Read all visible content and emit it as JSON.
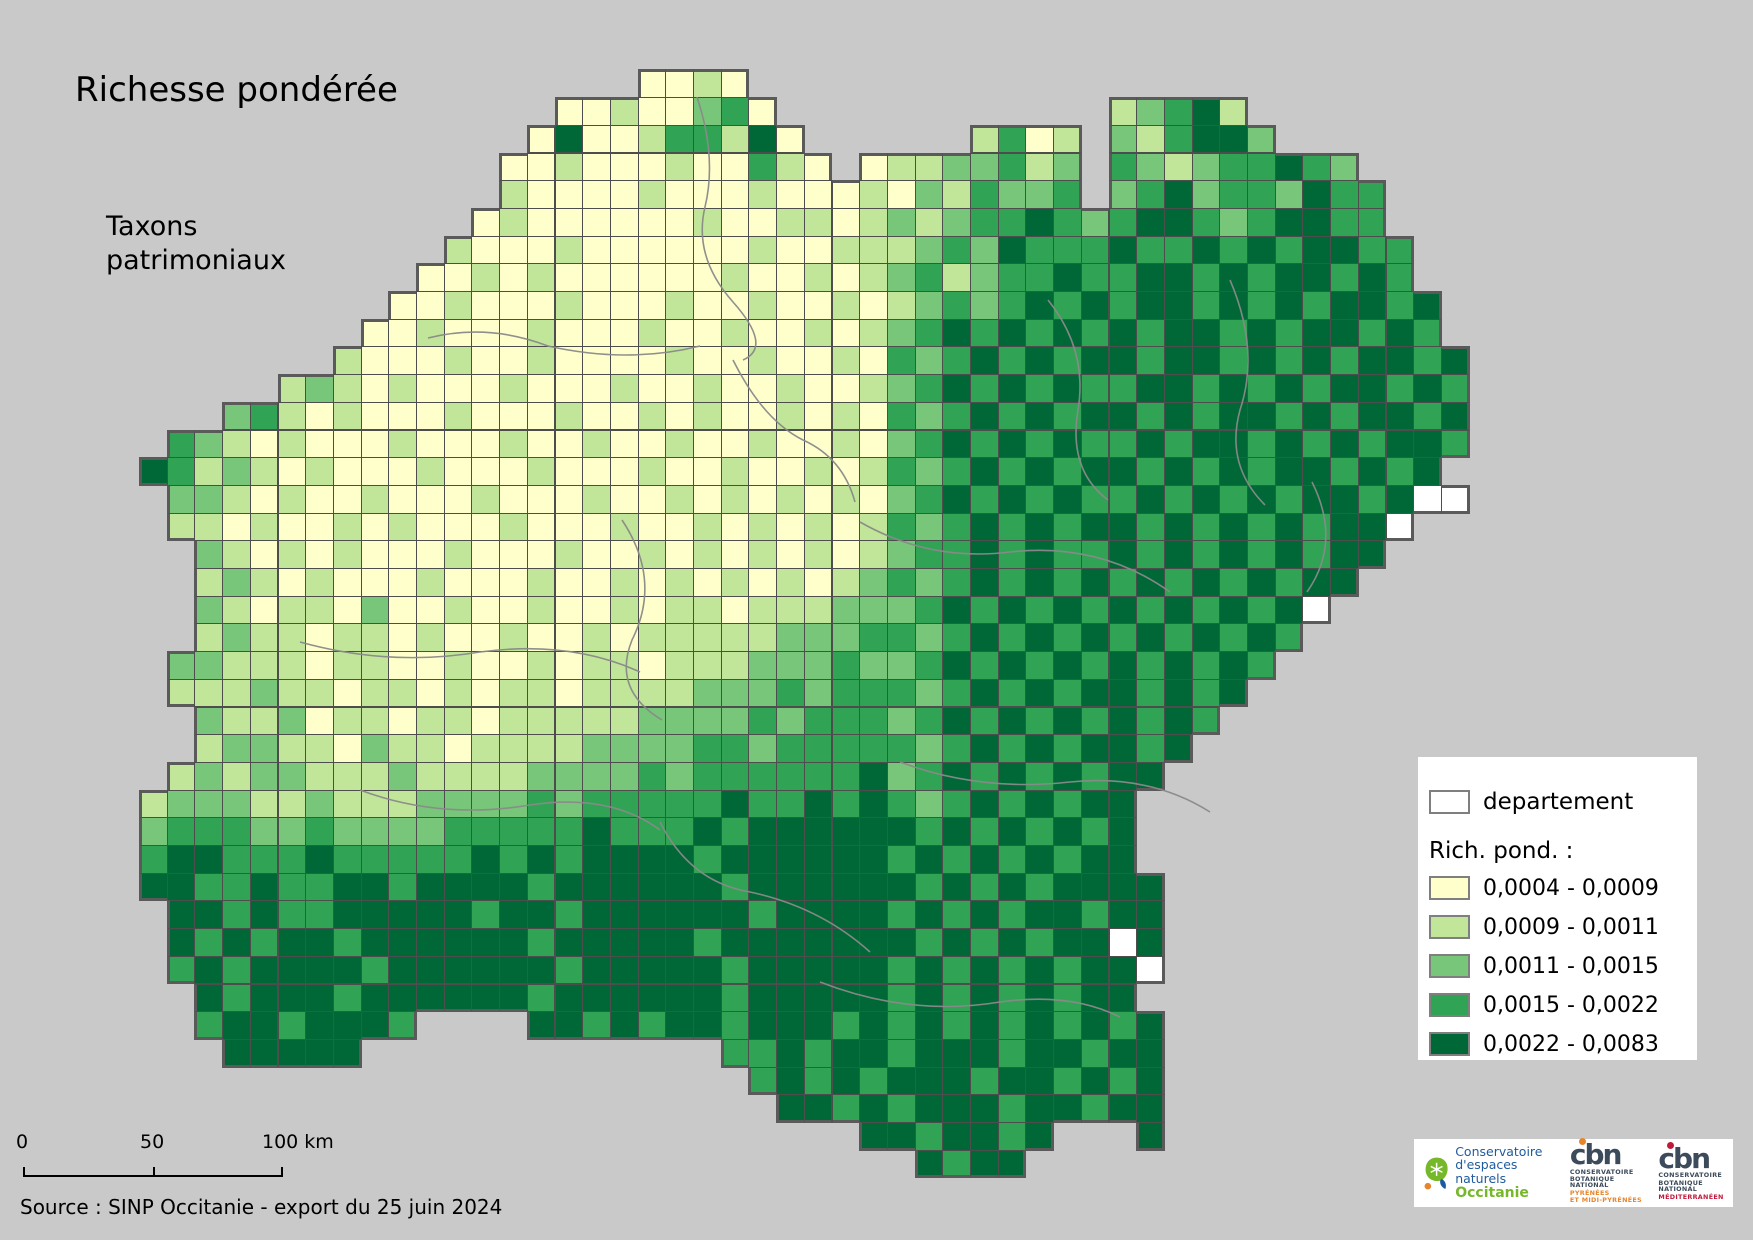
{
  "title": "Richesse pondérée",
  "subtitle": "Taxons\npatrimoniaux",
  "source": "Source : SINP Occitanie - export du 25 juin 2024",
  "scalebar": {
    "labels": [
      "0",
      "50",
      "100 km"
    ]
  },
  "legend": {
    "departement_label": "departement",
    "title": "Rich. pond. :",
    "classes": [
      {
        "label": "0,0004 - 0,0009",
        "color": "#FFFFCC"
      },
      {
        "label": "0,0009 - 0,0011",
        "color": "#C2E699"
      },
      {
        "label": "0,0011 - 0,0015",
        "color": "#78C679"
      },
      {
        "label": "0,0015 - 0,0022",
        "color": "#31A354"
      },
      {
        "label": "0,0022 - 0,0083",
        "color": "#006837"
      }
    ]
  },
  "map": {
    "region": "Occitanie",
    "palette": {
      "0": "#FFFFFF",
      "1": "#FFFFCC",
      "2": "#C2E699",
      "3": "#78C679",
      "4": "#31A354",
      "5": "#006837"
    },
    "rows": [
      "..................1121..........................",
      "...............11211341............23452........",
      "..............1511244251......2412.324553.......",
      ".............112111211421.12233423.432344543....",
      ".............211112111211121324334.3453443544...",
      "............121111112112212323445434554345544...",
      "...........21112111111211222343544454454545544..",
      "..........112121111112112123423445445545455454..",
      ".........11211121112112112123434545455454545545.",
      "........112111211121121121234545454545545455454.",
      ".......21112112111121121121434545455455454545545",
      ".....2321211121112112112112345454544554545455454",
      "...342121112111211212112121434545455454554545545",
      ".43212111211121121121121121345454544545545454554",
      "54232121112111211121121121243454545545454554545.",
      ".33212112111211121121212121345454544545454554500",
      ".221211212111211121121212124345454554545454550..",
      "..3212121112111211212121212344545445454545455...",
      "..232121112111211212121212343454545454545455....",
      "..32122131121121121221222333454545454545450.....",
      "..2322122121121121222223334434545454545454......",
      ".3322212211211212212223334334545454545454.......",
      ".222322122121221222233343444345454554545........",
      "..3223122122122222333343444345454545454.........",
      "..233221322122223333443444443454545545..........",
      ".232332223222233334344444453454545455...........",
      "233322322233334344444544545434545455............",
      "344433433334444454445455555545454545............",
      "455444544444545455554555555454545455............",
      "5544544554555545555554555555454545555...........",
      ".554544555554554555555455554545455455...........",
      ".545455455555545555545555555454545505...........",
      ".454555545555554555554555554545454550...........",
      "..5455545555554555555455555454545455............",
      "..45545554....55454554555454545454545...........",
      "...55555.............4454554555455455...........",
      "......................454545554554545...........",
      ".......................55454555455455...........",
      "..........................5545545...5...........",
      "............................5455................"
    ]
  },
  "logos": {
    "cen": {
      "line1": "Conservatoire",
      "line2": "d'espaces naturels",
      "line3": "Occitanie"
    },
    "cbn_pyrenees": {
      "wordmark": "cbn",
      "line1": "CONSERVATOIRE",
      "line2": "BOTANIQUE NATIONAL",
      "line3": "PYRÉNÉES",
      "line4": "ET MIDI-PYRÉNÉES"
    },
    "cbn_med": {
      "wordmark": "cbn",
      "line1": "CONSERVATOIRE",
      "line2": "BOTANIQUE NATIONAL",
      "line3": "MÉDITERRANÉEN"
    }
  }
}
